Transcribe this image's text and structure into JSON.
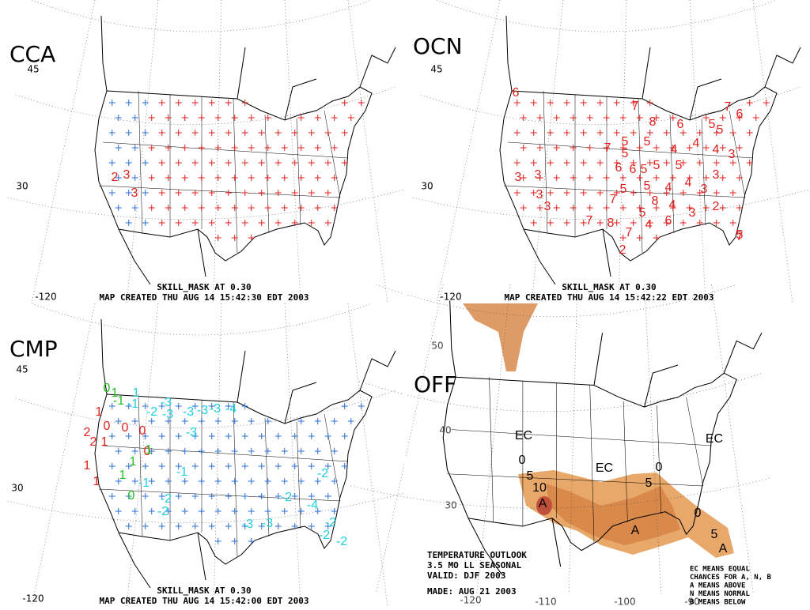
{
  "panels": [
    {
      "label": "CCA",
      "lat_labels": [
        "45",
        "30"
      ],
      "lon_labels": [
        "-120"
      ],
      "captions": [
        "SKILL_MASK AT 0.30",
        "MAP CREATED THU AUG 14 15:42:30 EDT 2003"
      ],
      "map_labels": [
        {
          "text": "2",
          "color": "#e0201e"
        },
        {
          "text": "3",
          "color": "#e0201e"
        },
        {
          "text": "3",
          "color": "#e0201e"
        }
      ]
    },
    {
      "label": "OCN",
      "lat_labels": [
        "45",
        "30"
      ],
      "lon_labels": [
        "-120"
      ],
      "captions": [
        "SKILL_MASK AT 0.30",
        "MAP CREATED THU AUG 14 15:42:22 EDT 2003"
      ],
      "map_labels": [
        {
          "text": "6",
          "color": "#e0201e"
        },
        {
          "text": "7",
          "color": "#e0201e"
        },
        {
          "text": "7",
          "color": "#e0201e"
        },
        {
          "text": "8",
          "color": "#e0201e"
        },
        {
          "text": "6",
          "color": "#e0201e"
        },
        {
          "text": "5",
          "color": "#e0201e"
        },
        {
          "text": "6",
          "color": "#e0201e"
        },
        {
          "text": "5",
          "color": "#e0201e"
        },
        {
          "text": "5",
          "color": "#e0201e"
        },
        {
          "text": "5",
          "color": "#e0201e"
        },
        {
          "text": "4",
          "color": "#e0201e"
        },
        {
          "text": "4",
          "color": "#e0201e"
        },
        {
          "text": "4",
          "color": "#e0201e"
        },
        {
          "text": "3",
          "color": "#e0201e"
        },
        {
          "text": "7",
          "color": "#e0201e"
        },
        {
          "text": "5",
          "color": "#e0201e"
        },
        {
          "text": "5",
          "color": "#e0201e"
        },
        {
          "text": "5",
          "color": "#e0201e"
        },
        {
          "text": "6",
          "color": "#e0201e"
        },
        {
          "text": "6",
          "color": "#e0201e"
        },
        {
          "text": "5",
          "color": "#e0201e"
        },
        {
          "text": "3",
          "color": "#e0201e"
        },
        {
          "text": "3",
          "color": "#e0201e"
        },
        {
          "text": "5",
          "color": "#e0201e"
        },
        {
          "text": "5",
          "color": "#e0201e"
        },
        {
          "text": "4",
          "color": "#e0201e"
        },
        {
          "text": "4",
          "color": "#e0201e"
        },
        {
          "text": "3",
          "color": "#e0201e"
        },
        {
          "text": "3",
          "color": "#e0201e"
        },
        {
          "text": "3",
          "color": "#e0201e"
        },
        {
          "text": "7",
          "color": "#e0201e"
        },
        {
          "text": "8",
          "color": "#e0201e"
        },
        {
          "text": "4",
          "color": "#e0201e"
        },
        {
          "text": "3",
          "color": "#e0201e"
        },
        {
          "text": "7",
          "color": "#e0201e"
        },
        {
          "text": "8",
          "color": "#e0201e"
        },
        {
          "text": "7",
          "color": "#e0201e"
        },
        {
          "text": "5",
          "color": "#e0201e"
        },
        {
          "text": "4",
          "color": "#e0201e"
        },
        {
          "text": "6",
          "color": "#e0201e"
        },
        {
          "text": "3",
          "color": "#e0201e"
        },
        {
          "text": "2",
          "color": "#e0201e"
        },
        {
          "text": "2",
          "color": "#e0201e"
        },
        {
          "text": "7",
          "color": "#e0201e"
        },
        {
          "text": "5",
          "color": "#e0201e"
        }
      ]
    },
    {
      "label": "CMP",
      "lat_labels": [
        "45",
        "30"
      ],
      "lon_labels": [
        "-120"
      ],
      "captions": [
        "SKILL_MASK AT 0.30",
        "MAP CREATED THU AUG 14 15:42:00 EDT 2003"
      ],
      "map_labels": [
        {
          "text": "0",
          "color": "#22c022"
        },
        {
          "text": "1",
          "color": "#22c022"
        },
        {
          "text": "1",
          "color": "#1ecfe0"
        },
        {
          "text": "-1",
          "color": "#22c022"
        },
        {
          "text": "-1",
          "color": "#1ecfe0"
        },
        {
          "text": "-3",
          "color": "#1ecfe0"
        },
        {
          "text": "-2",
          "color": "#1ecfe0"
        },
        {
          "text": "-3",
          "color": "#1ecfe0"
        },
        {
          "text": "-3",
          "color": "#1ecfe0"
        },
        {
          "text": "-3",
          "color": "#1ecfe0"
        },
        {
          "text": "-3",
          "color": "#1ecfe0"
        },
        {
          "text": "-4",
          "color": "#1ecfe0"
        },
        {
          "text": "1",
          "color": "#e0201e"
        },
        {
          "text": "0",
          "color": "#e0201e"
        },
        {
          "text": "0",
          "color": "#e0201e"
        },
        {
          "text": "0",
          "color": "#e0201e"
        },
        {
          "text": "2",
          "color": "#e0201e"
        },
        {
          "text": "2",
          "color": "#e0201e"
        },
        {
          "text": "1",
          "color": "#e0201e"
        },
        {
          "text": "0",
          "color": "#e0201e"
        },
        {
          "text": "1",
          "color": "#22c022"
        },
        {
          "text": "1",
          "color": "#22c022"
        },
        {
          "text": "-3",
          "color": "#1ecfe0"
        },
        {
          "text": "1",
          "color": "#e0201e"
        },
        {
          "text": "1",
          "color": "#e0201e"
        },
        {
          "text": "1",
          "color": "#22c022"
        },
        {
          "text": "-1",
          "color": "#1ecfe0"
        },
        {
          "text": "0",
          "color": "#22c022"
        },
        {
          "text": "-2",
          "color": "#1ecfe0"
        },
        {
          "text": "-2",
          "color": "#1ecfe0"
        },
        {
          "text": "-1",
          "color": "#1ecfe0"
        },
        {
          "text": "-2",
          "color": "#1ecfe0"
        },
        {
          "text": "-2",
          "color": "#1ecfe0"
        },
        {
          "text": "-4",
          "color": "#1ecfe0"
        },
        {
          "text": "-3",
          "color": "#1ecfe0"
        },
        {
          "text": "-3",
          "color": "#1ecfe0"
        },
        {
          "text": "-2",
          "color": "#1ecfe0"
        },
        {
          "text": "-2",
          "color": "#1ecfe0"
        },
        {
          "text": "-2",
          "color": "#1ecfe0"
        }
      ]
    },
    {
      "label": "OFF",
      "lat_labels": [
        "50",
        "40",
        "30"
      ],
      "lon_labels": [
        "-120",
        "-110",
        "-100",
        "-90"
      ],
      "captions": [
        "TEMPERATURE OUTLOOK",
        "3.5 MO LL SEASONAL",
        "VALID: DJF 2003",
        "MADE:  AUG 21 2003"
      ],
      "legend": [
        "EC MEANS EQUAL",
        "CHANCES FOR A, N, B",
        "A MEANS ABOVE",
        "N MEANS NORMAL",
        "B MEANS BELOW"
      ],
      "map_labels": [
        {
          "text": "EC",
          "color": "#000000"
        },
        {
          "text": "EC",
          "color": "#000000"
        },
        {
          "text": "EC",
          "color": "#000000"
        },
        {
          "text": "0",
          "color": "#000000"
        },
        {
          "text": "5",
          "color": "#000000"
        },
        {
          "text": "10",
          "color": "#000000"
        },
        {
          "text": "A",
          "color": "#000000"
        },
        {
          "text": "5",
          "color": "#000000"
        },
        {
          "text": "0",
          "color": "#000000"
        },
        {
          "text": "A",
          "color": "#000000"
        },
        {
          "text": "0",
          "color": "#000000"
        },
        {
          "text": "5",
          "color": "#000000"
        },
        {
          "text": "A",
          "color": "#000000"
        }
      ]
    }
  ]
}
